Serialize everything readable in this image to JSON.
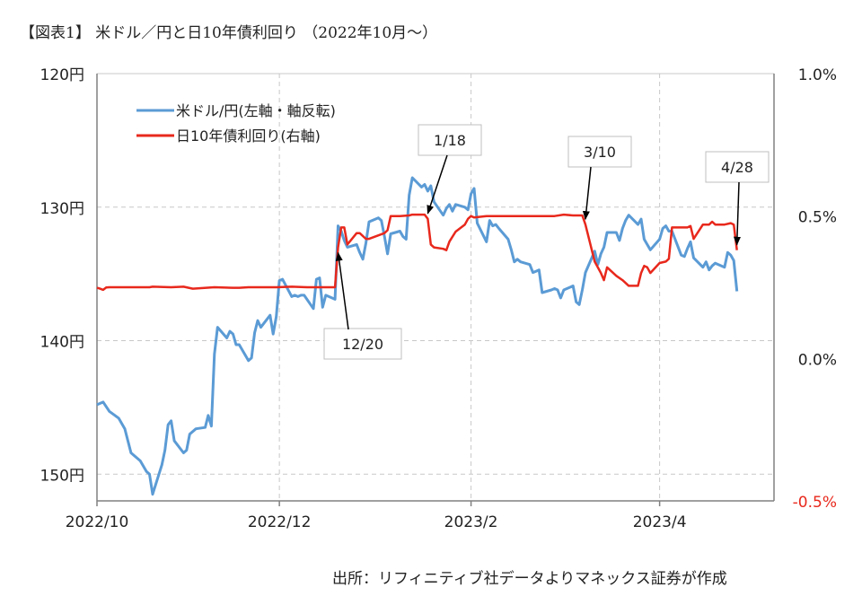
{
  "title": "【図表1】 米ドル／円と日10年債利回り （2022年10月～）",
  "source": "出所：リフィニティブ社データよりマネックス証券が作成",
  "chart_data": {
    "type": "line",
    "left_axis": {
      "ylim": [
        120,
        152
      ],
      "inverted": true,
      "ticks": [
        120,
        130,
        140,
        150
      ],
      "tick_labels": [
        "120円",
        "130円",
        "140円",
        "150円"
      ]
    },
    "right_axis": {
      "ylim": [
        -0.5,
        1.0
      ],
      "ticks": [
        1.0,
        0.5,
        0.0,
        -0.5
      ],
      "tick_labels": [
        "1.0%",
        "0.5%",
        "0.0%",
        "-0.5%"
      ],
      "negative_color": "#e8281c"
    },
    "x_ticks": [
      {
        "date": "2022-10-03",
        "label": "2022/10"
      },
      {
        "date": "2022-12-01",
        "label": "2022/12"
      },
      {
        "date": "2023-02-01",
        "label": "2023/2"
      },
      {
        "date": "2023-04-03",
        "label": "2023/4"
      }
    ],
    "x_range": [
      "2022-10-03",
      "2023-05-10"
    ],
    "grid": true,
    "legend_position": "top-left",
    "series": [
      {
        "name": "米ドル/円(左軸・軸反転)",
        "axis": "left",
        "color": "#5b9bd5",
        "points": [
          [
            "2022-10-03",
            144.8
          ],
          [
            "2022-10-05",
            144.6
          ],
          [
            "2022-10-07",
            145.3
          ],
          [
            "2022-10-10",
            145.8
          ],
          [
            "2022-10-12",
            146.6
          ],
          [
            "2022-10-14",
            148.4
          ],
          [
            "2022-10-17",
            149.0
          ],
          [
            "2022-10-19",
            149.8
          ],
          [
            "2022-10-20",
            150.0
          ],
          [
            "2022-10-21",
            151.5
          ],
          [
            "2022-10-24",
            149.3
          ],
          [
            "2022-10-25",
            148.2
          ],
          [
            "2022-10-26",
            146.3
          ],
          [
            "2022-10-27",
            146.0
          ],
          [
            "2022-10-28",
            147.5
          ],
          [
            "2022-10-31",
            148.4
          ],
          [
            "2022-11-01",
            148.2
          ],
          [
            "2022-11-02",
            147.0
          ],
          [
            "2022-11-04",
            146.6
          ],
          [
            "2022-11-07",
            146.5
          ],
          [
            "2022-11-08",
            145.6
          ],
          [
            "2022-11-09",
            146.4
          ],
          [
            "2022-11-10",
            141.0
          ],
          [
            "2022-11-11",
            139.0
          ],
          [
            "2022-11-14",
            139.8
          ],
          [
            "2022-11-15",
            139.3
          ],
          [
            "2022-11-16",
            139.5
          ],
          [
            "2022-11-17",
            140.3
          ],
          [
            "2022-11-18",
            140.3
          ],
          [
            "2022-11-21",
            141.5
          ],
          [
            "2022-11-22",
            141.3
          ],
          [
            "2022-11-23",
            139.4
          ],
          [
            "2022-11-24",
            138.5
          ],
          [
            "2022-11-25",
            139.0
          ],
          [
            "2022-11-28",
            138.1
          ],
          [
            "2022-11-29",
            139.5
          ],
          [
            "2022-11-30",
            138.2
          ],
          [
            "2022-12-01",
            135.5
          ],
          [
            "2022-12-02",
            135.4
          ],
          [
            "2022-12-05",
            136.7
          ],
          [
            "2022-12-06",
            136.6
          ],
          [
            "2022-12-07",
            136.7
          ],
          [
            "2022-12-08",
            136.6
          ],
          [
            "2022-12-09",
            136.6
          ],
          [
            "2022-12-12",
            137.6
          ],
          [
            "2022-12-13",
            135.4
          ],
          [
            "2022-12-14",
            135.3
          ],
          [
            "2022-12-15",
            137.5
          ],
          [
            "2022-12-16",
            136.6
          ],
          [
            "2022-12-19",
            136.9
          ],
          [
            "2022-12-20",
            131.4
          ],
          [
            "2022-12-21",
            131.8
          ],
          [
            "2022-12-22",
            132.5
          ],
          [
            "2022-12-23",
            133.0
          ],
          [
            "2022-12-26",
            132.8
          ],
          [
            "2022-12-27",
            133.4
          ],
          [
            "2022-12-28",
            133.9
          ],
          [
            "2022-12-29",
            132.7
          ],
          [
            "2022-12-30",
            131.1
          ],
          [
            "2023-01-02",
            130.8
          ],
          [
            "2023-01-03",
            131.0
          ],
          [
            "2023-01-04",
            132.2
          ],
          [
            "2023-01-05",
            133.5
          ],
          [
            "2023-01-06",
            132.0
          ],
          [
            "2023-01-09",
            131.8
          ],
          [
            "2023-01-10",
            132.2
          ],
          [
            "2023-01-11",
            132.4
          ],
          [
            "2023-01-12",
            129.1
          ],
          [
            "2023-01-13",
            127.8
          ],
          [
            "2023-01-16",
            128.5
          ],
          [
            "2023-01-17",
            128.3
          ],
          [
            "2023-01-18",
            128.8
          ],
          [
            "2023-01-19",
            128.4
          ],
          [
            "2023-01-20",
            129.6
          ],
          [
            "2023-01-23",
            130.6
          ],
          [
            "2023-01-24",
            130.1
          ],
          [
            "2023-01-25",
            129.8
          ],
          [
            "2023-01-26",
            130.3
          ],
          [
            "2023-01-27",
            129.8
          ],
          [
            "2023-01-30",
            130.0
          ],
          [
            "2023-01-31",
            130.2
          ],
          [
            "2023-02-01",
            129.0
          ],
          [
            "2023-02-02",
            128.6
          ],
          [
            "2023-02-03",
            131.2
          ],
          [
            "2023-02-06",
            132.6
          ],
          [
            "2023-02-07",
            131.0
          ],
          [
            "2023-02-08",
            131.4
          ],
          [
            "2023-02-09",
            131.3
          ],
          [
            "2023-02-10",
            131.6
          ],
          [
            "2023-02-13",
            132.4
          ],
          [
            "2023-02-14",
            133.2
          ],
          [
            "2023-02-15",
            134.1
          ],
          [
            "2023-02-16",
            133.9
          ],
          [
            "2023-02-17",
            134.1
          ],
          [
            "2023-02-20",
            134.3
          ],
          [
            "2023-02-21",
            134.9
          ],
          [
            "2023-02-22",
            134.8
          ],
          [
            "2023-02-23",
            134.7
          ],
          [
            "2023-02-24",
            136.4
          ],
          [
            "2023-02-27",
            136.2
          ],
          [
            "2023-02-28",
            136.1
          ],
          [
            "2023-03-01",
            136.2
          ],
          [
            "2023-03-02",
            136.8
          ],
          [
            "2023-03-03",
            136.2
          ],
          [
            "2023-03-06",
            135.9
          ],
          [
            "2023-03-07",
            137.1
          ],
          [
            "2023-03-08",
            137.3
          ],
          [
            "2023-03-09",
            136.2
          ],
          [
            "2023-03-10",
            134.9
          ],
          [
            "2023-03-13",
            133.3
          ],
          [
            "2023-03-14",
            134.3
          ],
          [
            "2023-03-15",
            133.5
          ],
          [
            "2023-03-16",
            133.0
          ],
          [
            "2023-03-17",
            131.9
          ],
          [
            "2023-03-20",
            131.9
          ],
          [
            "2023-03-21",
            132.5
          ],
          [
            "2023-03-22",
            131.6
          ],
          [
            "2023-03-23",
            131.0
          ],
          [
            "2023-03-24",
            130.6
          ],
          [
            "2023-03-27",
            131.3
          ],
          [
            "2023-03-28",
            130.9
          ],
          [
            "2023-03-29",
            132.4
          ],
          [
            "2023-03-30",
            132.8
          ],
          [
            "2023-03-31",
            133.2
          ],
          [
            "2023-04-03",
            132.4
          ],
          [
            "2023-04-04",
            131.6
          ],
          [
            "2023-04-05",
            131.4
          ],
          [
            "2023-04-06",
            131.8
          ],
          [
            "2023-04-07",
            131.8
          ],
          [
            "2023-04-10",
            133.6
          ],
          [
            "2023-04-11",
            133.7
          ],
          [
            "2023-04-12",
            133.1
          ],
          [
            "2023-04-13",
            132.6
          ],
          [
            "2023-04-14",
            133.8
          ],
          [
            "2023-04-17",
            134.5
          ],
          [
            "2023-04-18",
            134.1
          ],
          [
            "2023-04-19",
            134.7
          ],
          [
            "2023-04-20",
            134.4
          ],
          [
            "2023-04-21",
            134.2
          ],
          [
            "2023-04-24",
            134.5
          ],
          [
            "2023-04-25",
            133.4
          ],
          [
            "2023-04-26",
            133.6
          ],
          [
            "2023-04-27",
            134.0
          ],
          [
            "2023-04-28",
            136.3
          ]
        ]
      },
      {
        "name": "日10年債利回り(右軸)",
        "axis": "right",
        "color": "#e8281c",
        "points": [
          [
            "2022-10-03",
            0.248
          ],
          [
            "2022-10-04",
            0.245
          ],
          [
            "2022-10-05",
            0.241
          ],
          [
            "2022-10-06",
            0.249
          ],
          [
            "2022-10-07",
            0.25
          ],
          [
            "2022-10-10",
            0.25
          ],
          [
            "2022-10-20",
            0.25
          ],
          [
            "2022-10-21",
            0.252
          ],
          [
            "2022-10-27",
            0.25
          ],
          [
            "2022-10-31",
            0.252
          ],
          [
            "2022-11-03",
            0.245
          ],
          [
            "2022-11-10",
            0.25
          ],
          [
            "2022-11-16",
            0.248
          ],
          [
            "2022-11-18",
            0.248
          ],
          [
            "2022-11-21",
            0.25
          ],
          [
            "2022-11-30",
            0.25
          ],
          [
            "2022-12-05",
            0.252
          ],
          [
            "2022-12-10",
            0.25
          ],
          [
            "2022-12-19",
            0.25
          ],
          [
            "2022-12-20",
            0.39
          ],
          [
            "2022-12-21",
            0.46
          ],
          [
            "2022-12-22",
            0.46
          ],
          [
            "2022-12-23",
            0.4
          ],
          [
            "2022-12-26",
            0.44
          ],
          [
            "2022-12-27",
            0.44
          ],
          [
            "2022-12-28",
            0.43
          ],
          [
            "2022-12-29",
            0.42
          ],
          [
            "2022-12-30",
            0.42
          ],
          [
            "2023-01-04",
            0.44
          ],
          [
            "2023-01-05",
            0.45
          ],
          [
            "2023-01-06",
            0.5
          ],
          [
            "2023-01-09",
            0.5
          ],
          [
            "2023-01-12",
            0.502
          ],
          [
            "2023-01-13",
            0.505
          ],
          [
            "2023-01-16",
            0.505
          ],
          [
            "2023-01-17",
            0.505
          ],
          [
            "2023-01-18",
            0.49
          ],
          [
            "2023-01-19",
            0.4
          ],
          [
            "2023-01-20",
            0.39
          ],
          [
            "2023-01-23",
            0.385
          ],
          [
            "2023-01-24",
            0.38
          ],
          [
            "2023-01-25",
            0.41
          ],
          [
            "2023-01-27",
            0.445
          ],
          [
            "2023-01-30",
            0.47
          ],
          [
            "2023-01-31",
            0.49
          ],
          [
            "2023-02-01",
            0.5
          ],
          [
            "2023-02-02",
            0.495
          ],
          [
            "2023-02-06",
            0.5
          ],
          [
            "2023-02-10",
            0.5
          ],
          [
            "2023-02-20",
            0.5
          ],
          [
            "2023-02-28",
            0.5
          ],
          [
            "2023-03-03",
            0.505
          ],
          [
            "2023-03-06",
            0.502
          ],
          [
            "2023-03-09",
            0.502
          ],
          [
            "2023-03-10",
            0.47
          ],
          [
            "2023-03-13",
            0.34
          ],
          [
            "2023-03-15",
            0.3
          ],
          [
            "2023-03-16",
            0.275
          ],
          [
            "2023-03-17",
            0.32
          ],
          [
            "2023-03-20",
            0.29
          ],
          [
            "2023-03-22",
            0.275
          ],
          [
            "2023-03-24",
            0.255
          ],
          [
            "2023-03-27",
            0.255
          ],
          [
            "2023-03-28",
            0.3
          ],
          [
            "2023-03-29",
            0.325
          ],
          [
            "2023-03-30",
            0.32
          ],
          [
            "2023-03-31",
            0.3
          ],
          [
            "2023-04-03",
            0.335
          ],
          [
            "2023-04-05",
            0.34
          ],
          [
            "2023-04-06",
            0.35
          ],
          [
            "2023-04-07",
            0.46
          ],
          [
            "2023-04-10",
            0.46
          ],
          [
            "2023-04-12",
            0.46
          ],
          [
            "2023-04-13",
            0.465
          ],
          [
            "2023-04-14",
            0.42
          ],
          [
            "2023-04-17",
            0.47
          ],
          [
            "2023-04-19",
            0.47
          ],
          [
            "2023-04-20",
            0.48
          ],
          [
            "2023-04-21",
            0.47
          ],
          [
            "2023-04-24",
            0.47
          ],
          [
            "2023-04-26",
            0.475
          ],
          [
            "2023-04-27",
            0.47
          ],
          [
            "2023-04-28",
            0.38
          ]
        ]
      }
    ],
    "annotations": [
      {
        "label": "12/20",
        "date": "2022-12-20"
      },
      {
        "label": "1/18",
        "date": "2023-01-18"
      },
      {
        "label": "3/10",
        "date": "2023-03-10"
      },
      {
        "label": "4/28",
        "date": "2023-04-28"
      }
    ]
  }
}
